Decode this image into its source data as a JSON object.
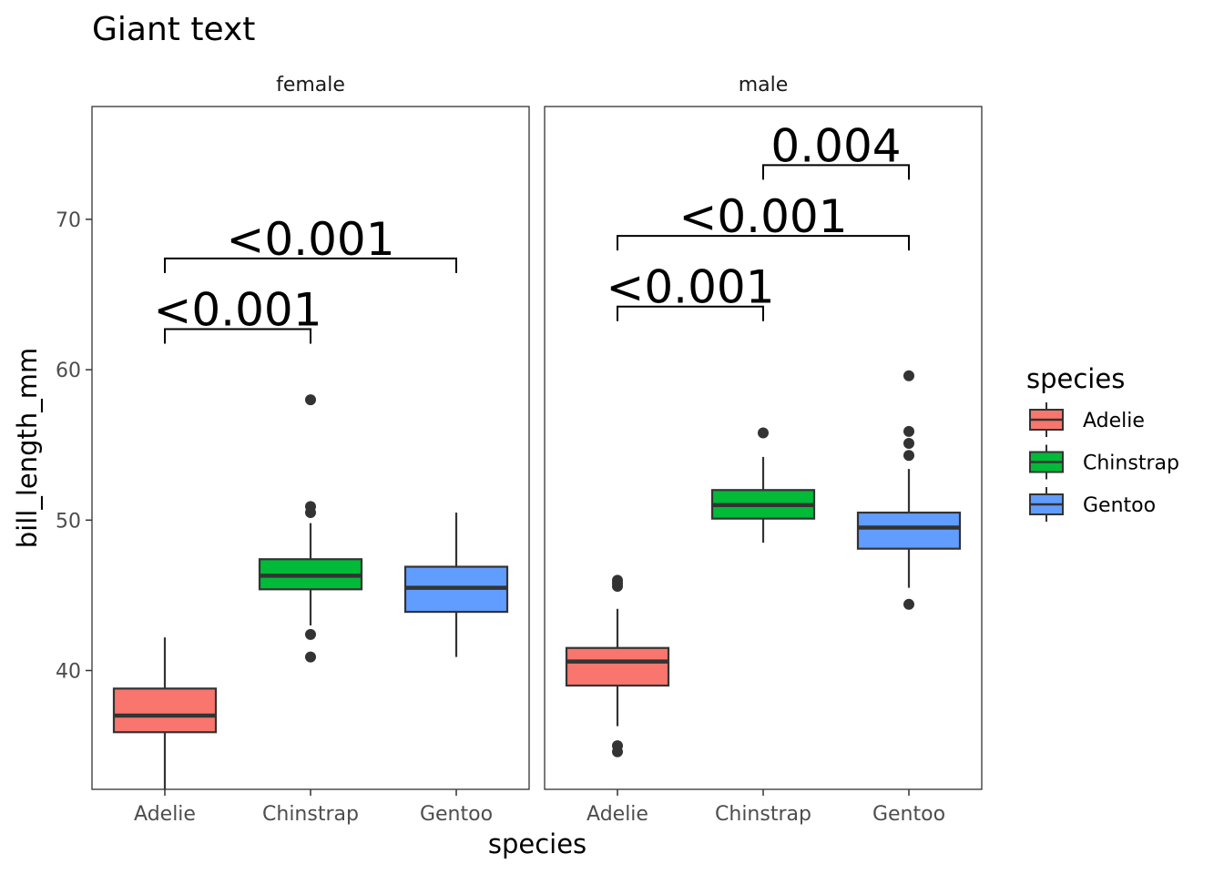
{
  "title": "Giant text",
  "chart_data": {
    "type": "box",
    "title": "Giant text",
    "xlabel": "species",
    "ylabel": "bill_length_mm",
    "ylim": [
      32.1,
      77.5
    ],
    "yticks": [
      40,
      50,
      60,
      70
    ],
    "categories": [
      "Adelie",
      "Chinstrap",
      "Gentoo"
    ],
    "legend": {
      "title": "species",
      "position": "right"
    },
    "colors": {
      "Adelie": "#F8766D",
      "Chinstrap": "#00BA38",
      "Gentoo": "#619CFF"
    },
    "facets": [
      {
        "label": "female",
        "boxes": [
          {
            "species": "Adelie",
            "min": 32.1,
            "q1": 35.9,
            "median": 37.0,
            "q3": 38.8,
            "max": 42.2,
            "outliers": []
          },
          {
            "species": "Chinstrap",
            "min": 43.0,
            "q1": 45.4,
            "median": 46.3,
            "q3": 47.4,
            "max": 49.8,
            "outliers": [
              40.9,
              42.4,
              50.5,
              50.9,
              58.0
            ]
          },
          {
            "species": "Gentoo",
            "min": 40.9,
            "q1": 43.9,
            "median": 45.5,
            "q3": 46.9,
            "max": 50.5,
            "outliers": []
          }
        ],
        "comparisons": [
          {
            "from": "Adelie",
            "to": "Chinstrap",
            "y": 62.7,
            "label": "<0.001"
          },
          {
            "from": "Adelie",
            "to": "Gentoo",
            "y": 67.4,
            "label": "<0.001"
          }
        ]
      },
      {
        "label": "male",
        "boxes": [
          {
            "species": "Adelie",
            "min": 36.3,
            "q1": 39.0,
            "median": 40.6,
            "q3": 41.5,
            "max": 44.1,
            "outliers": [
              34.6,
              35.0,
              45.6,
              45.8,
              46.0
            ]
          },
          {
            "species": "Chinstrap",
            "min": 48.5,
            "q1": 50.1,
            "median": 51.0,
            "q3": 52.0,
            "max": 54.2,
            "outliers": [
              55.8
            ]
          },
          {
            "species": "Gentoo",
            "min": 45.5,
            "q1": 48.1,
            "median": 49.5,
            "q3": 50.5,
            "max": 53.4,
            "outliers": [
              44.4,
              54.3,
              55.1,
              55.9,
              59.6
            ]
          }
        ],
        "comparisons": [
          {
            "from": "Adelie",
            "to": "Chinstrap",
            "y": 64.2,
            "label": "<0.001"
          },
          {
            "from": "Adelie",
            "to": "Gentoo",
            "y": 68.9,
            "label": "<0.001"
          },
          {
            "from": "Chinstrap",
            "to": "Gentoo",
            "y": 73.6,
            "label": "0.004"
          }
        ]
      }
    ]
  }
}
